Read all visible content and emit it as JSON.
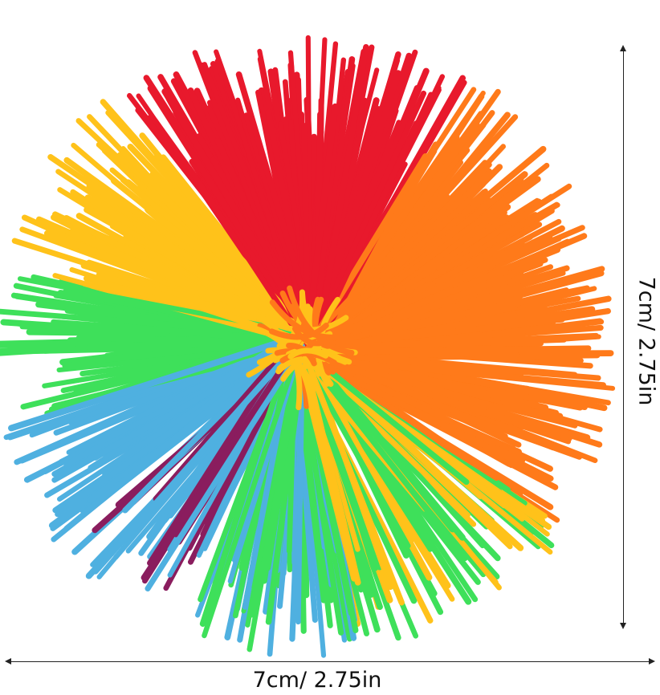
{
  "product": {
    "width_label": "7cm/ 2.75in",
    "height_label": "7cm/ 2.75in"
  },
  "strand_colors": {
    "red": "#e8192c",
    "orange": "#ff7a1a",
    "yellow": "#ffc21a",
    "green": "#3ee05a",
    "blue": "#4fb0e0",
    "purple": "#8a1d5e"
  }
}
